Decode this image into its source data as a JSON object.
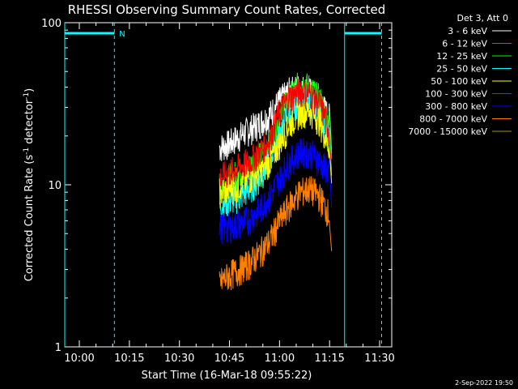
{
  "chart_data": {
    "type": "line",
    "title": "RHESSI Observing Summary Count Rates, Corrected",
    "xlabel": "Start Time (16-Mar-18 09:55:22)",
    "ylabel_main": "Corrected Count Rate (s",
    "ylabel_sup1": "-1",
    "ylabel_mid": " detector",
    "ylabel_sup2": "-1",
    "ylabel_end": ")",
    "yscale": "log",
    "ylim": [
      1,
      100
    ],
    "xlim_minutes": [
      -4.37,
      33.63
    ],
    "x_tick_labels": [
      "10:00",
      "10:15",
      "10:30",
      "10:45",
      "11:00",
      "11:15",
      "11:30"
    ],
    "x_tick_minutes": [
      0,
      15,
      30,
      45,
      60,
      75,
      90
    ],
    "y_tick_labels": [
      "1",
      "10",
      "100"
    ],
    "y_tick_values": [
      1,
      10,
      100
    ],
    "legend_header": "Det 3, Att 0",
    "legend_position": "top-right",
    "series": [
      {
        "name": "3 - 6 keV",
        "color": "#ffffff",
        "x": [
          42,
          45,
          48,
          51,
          54,
          57,
          60,
          63,
          66,
          69,
          72,
          75
        ],
        "y": [
          17,
          18,
          20,
          22,
          24,
          27,
          33,
          38,
          40,
          38,
          33,
          26
        ]
      },
      {
        "name": "6 - 12 keV",
        "color": "#ff00ff",
        "x": [],
        "y": []
      },
      {
        "name": "12 - 25 keV",
        "color": "#00ff00",
        "x": [
          42,
          45,
          48,
          51,
          54,
          57,
          60,
          63,
          66,
          69,
          72,
          75
        ],
        "y": [
          10,
          11,
          12,
          13,
          15,
          18,
          26,
          35,
          42,
          40,
          34,
          24
        ]
      },
      {
        "name": "25 - 50 keV",
        "color": "#00ffff",
        "x": [
          42,
          45,
          48,
          51,
          54,
          57,
          60,
          63,
          66,
          69,
          72,
          75
        ],
        "y": [
          7.5,
          8,
          8.5,
          9.5,
          11,
          14,
          21,
          29,
          34,
          33,
          28,
          19
        ]
      },
      {
        "name": "50 - 100 keV",
        "color": "#ffff00",
        "x": [
          42,
          45,
          48,
          51,
          54,
          57,
          60,
          63,
          66,
          69,
          72,
          75
        ],
        "y": [
          9,
          9.5,
          10,
          11,
          12,
          14,
          18,
          24,
          28,
          29,
          25,
          17
        ]
      },
      {
        "name": "100 - 300 keV",
        "color": "#ff0000",
        "x": [
          42,
          45,
          48,
          51,
          54,
          57,
          60,
          63,
          66,
          69,
          72,
          75
        ],
        "y": [
          11,
          12,
          13,
          14,
          16,
          19,
          28,
          35,
          38,
          37,
          32,
          22
        ]
      },
      {
        "name": "300 - 800 keV",
        "color": "#0000ff",
        "x": [
          42,
          45,
          48,
          51,
          54,
          57,
          60,
          63,
          66,
          69,
          72,
          75
        ],
        "y": [
          5.5,
          5.5,
          5.8,
          6.2,
          7,
          8.5,
          11,
          14,
          16,
          16,
          14,
          12
        ]
      },
      {
        "name": "800 - 7000 keV",
        "color": "#ff8000",
        "x": [
          42,
          45,
          48,
          51,
          54,
          57,
          60,
          63,
          66,
          69,
          72,
          75
        ],
        "y": [
          2.5,
          2.8,
          3.0,
          3.3,
          3.8,
          4.5,
          6,
          7.5,
          9,
          9.5,
          8.5,
          6.5
        ]
      },
      {
        "name": "7000 - 15000 keV",
        "color": "#999900",
        "x": [],
        "y": []
      }
    ],
    "attenuator_bars": [
      {
        "start": -4.37,
        "end": 10.5
      },
      {
        "start": 79.5,
        "end": 90.6
      }
    ],
    "night_marker": "N",
    "footer_date": "2-Sep-2022 19:50"
  }
}
